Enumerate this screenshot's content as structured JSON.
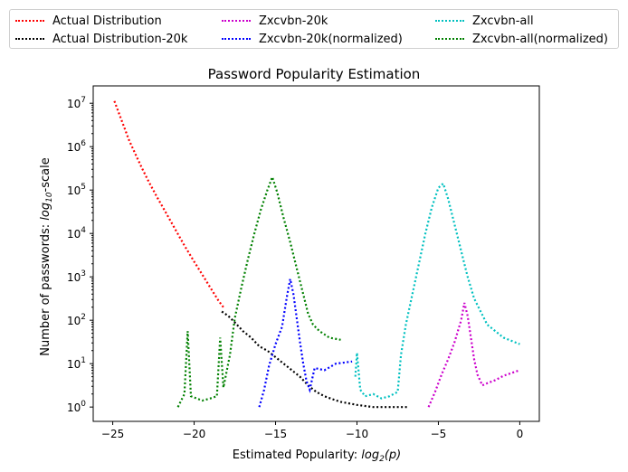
{
  "chart_data": {
    "type": "line",
    "title": "Password Popularity Estimation",
    "xlabel_parts": [
      "Estimated Popularity: ",
      "log",
      "2",
      "(p)"
    ],
    "ylabel_parts": [
      "Number of passwords: ",
      "log",
      "10",
      "-scale"
    ],
    "xlim": [
      -26.2,
      1.2
    ],
    "ylim_log10": [
      -0.33,
      7.4
    ],
    "x_ticks": [
      {
        "value": -25,
        "label": "−25"
      },
      {
        "value": -20,
        "label": "−20"
      },
      {
        "value": -15,
        "label": "−15"
      },
      {
        "value": -10,
        "label": "−10"
      },
      {
        "value": -5,
        "label": "−5"
      },
      {
        "value": 0,
        "label": "0"
      }
    ],
    "y_ticks": [
      {
        "exp": 0,
        "base": "10",
        "sup": "0"
      },
      {
        "exp": 1,
        "base": "10",
        "sup": "1"
      },
      {
        "exp": 2,
        "base": "10",
        "sup": "2"
      },
      {
        "exp": 3,
        "base": "10",
        "sup": "3"
      },
      {
        "exp": 4,
        "base": "10",
        "sup": "4"
      },
      {
        "exp": 5,
        "base": "10",
        "sup": "5"
      },
      {
        "exp": 6,
        "base": "10",
        "sup": "6"
      },
      {
        "exp": 7,
        "base": "10",
        "sup": "7"
      }
    ],
    "legend_placement": "top, outside, 3 columns",
    "series": [
      {
        "name": "Actual Distribution",
        "color": "#ff0000",
        "points": [
          [
            -24.9,
            7.05
          ],
          [
            -24.6,
            6.75
          ],
          [
            -24.3,
            6.45
          ],
          [
            -24.0,
            6.15
          ],
          [
            -23.6,
            5.82
          ],
          [
            -23.2,
            5.5
          ],
          [
            -22.8,
            5.2
          ],
          [
            -22.3,
            4.85
          ],
          [
            -21.8,
            4.52
          ],
          [
            -21.2,
            4.12
          ],
          [
            -20.6,
            3.72
          ],
          [
            -20.0,
            3.35
          ],
          [
            -19.5,
            3.05
          ],
          [
            -19.0,
            2.75
          ],
          [
            -18.5,
            2.45
          ],
          [
            -18.2,
            2.3
          ]
        ]
      },
      {
        "name": "Actual Distribution-20k",
        "color": "#000000",
        "points": [
          [
            -18.3,
            2.2
          ],
          [
            -17.9,
            2.1
          ],
          [
            -17.5,
            1.95
          ],
          [
            -17.0,
            1.75
          ],
          [
            -16.5,
            1.6
          ],
          [
            -16.0,
            1.4
          ],
          [
            -15.5,
            1.3
          ],
          [
            -15.0,
            1.15
          ],
          [
            -14.5,
            1.0
          ],
          [
            -14.0,
            0.85
          ],
          [
            -13.5,
            0.7
          ],
          [
            -13.0,
            0.5
          ],
          [
            -12.5,
            0.35
          ],
          [
            -12.0,
            0.25
          ],
          [
            -11.5,
            0.18
          ],
          [
            -11.0,
            0.12
          ],
          [
            -10.0,
            0.05
          ],
          [
            -9.0,
            0.0
          ],
          [
            -8.0,
            0.0
          ],
          [
            -6.8,
            0.0
          ]
        ]
      },
      {
        "name": "Zxcvbn-20k",
        "color": "#cc00cc",
        "points": [
          [
            -5.6,
            0.0
          ],
          [
            -5.2,
            0.35
          ],
          [
            -4.8,
            0.75
          ],
          [
            -4.4,
            1.1
          ],
          [
            -4.0,
            1.5
          ],
          [
            -3.6,
            2.0
          ],
          [
            -3.4,
            2.4
          ],
          [
            -3.2,
            2.1
          ],
          [
            -3.0,
            1.6
          ],
          [
            -2.8,
            1.1
          ],
          [
            -2.6,
            0.75
          ],
          [
            -2.3,
            0.5
          ],
          [
            -2.0,
            0.55
          ],
          [
            -1.5,
            0.62
          ],
          [
            -1.0,
            0.72
          ],
          [
            0.0,
            0.85
          ]
        ]
      },
      {
        "name": "Zxcvbn-20k(normalized)",
        "color": "#0000ff",
        "points": [
          [
            -16.0,
            0.0
          ],
          [
            -15.7,
            0.4
          ],
          [
            -15.4,
            0.95
          ],
          [
            -15.0,
            1.45
          ],
          [
            -14.6,
            1.85
          ],
          [
            -14.3,
            2.55
          ],
          [
            -14.1,
            2.95
          ],
          [
            -13.9,
            2.6
          ],
          [
            -13.7,
            2.05
          ],
          [
            -13.5,
            1.5
          ],
          [
            -13.3,
            1.0
          ],
          [
            -13.1,
            0.6
          ],
          [
            -12.9,
            0.4
          ],
          [
            -12.6,
            0.9
          ],
          [
            -12.0,
            0.85
          ],
          [
            -11.3,
            1.0
          ],
          [
            -10.3,
            1.05
          ]
        ]
      },
      {
        "name": "Zxcvbn-all",
        "color": "#00c0c0",
        "points": [
          [
            -10.1,
            0.7
          ],
          [
            -10.0,
            1.25
          ],
          [
            -9.8,
            0.4
          ],
          [
            -9.5,
            0.25
          ],
          [
            -9.0,
            0.3
          ],
          [
            -8.5,
            0.2
          ],
          [
            -8.0,
            0.25
          ],
          [
            -7.5,
            0.35
          ],
          [
            -7.3,
            1.2
          ],
          [
            -7.0,
            1.9
          ],
          [
            -6.6,
            2.6
          ],
          [
            -6.2,
            3.3
          ],
          [
            -5.8,
            4.0
          ],
          [
            -5.4,
            4.6
          ],
          [
            -5.0,
            5.05
          ],
          [
            -4.7,
            5.15
          ],
          [
            -4.4,
            4.8
          ],
          [
            -4.0,
            4.2
          ],
          [
            -3.6,
            3.6
          ],
          [
            -3.2,
            3.0
          ],
          [
            -2.8,
            2.5
          ],
          [
            -2.4,
            2.2
          ],
          [
            -2.0,
            1.9
          ],
          [
            -1.5,
            1.75
          ],
          [
            -1.0,
            1.6
          ],
          [
            0.0,
            1.45
          ]
        ]
      },
      {
        "name": "Zxcvbn-all(normalized)",
        "color": "#008000",
        "points": [
          [
            -21.0,
            0.0
          ],
          [
            -20.6,
            0.3
          ],
          [
            -20.4,
            1.75
          ],
          [
            -20.2,
            0.25
          ],
          [
            -19.5,
            0.15
          ],
          [
            -19.0,
            0.2
          ],
          [
            -18.6,
            0.25
          ],
          [
            -18.4,
            1.6
          ],
          [
            -18.2,
            0.45
          ],
          [
            -17.8,
            1.2
          ],
          [
            -17.5,
            2.05
          ],
          [
            -17.1,
            2.75
          ],
          [
            -16.7,
            3.4
          ],
          [
            -16.3,
            4.0
          ],
          [
            -15.9,
            4.55
          ],
          [
            -15.5,
            5.0
          ],
          [
            -15.2,
            5.3
          ],
          [
            -14.9,
            4.95
          ],
          [
            -14.5,
            4.35
          ],
          [
            -14.1,
            3.8
          ],
          [
            -13.7,
            3.2
          ],
          [
            -13.3,
            2.6
          ],
          [
            -13.0,
            2.15
          ],
          [
            -12.7,
            1.9
          ],
          [
            -12.3,
            1.75
          ],
          [
            -11.7,
            1.6
          ],
          [
            -11.0,
            1.55
          ]
        ]
      }
    ]
  }
}
